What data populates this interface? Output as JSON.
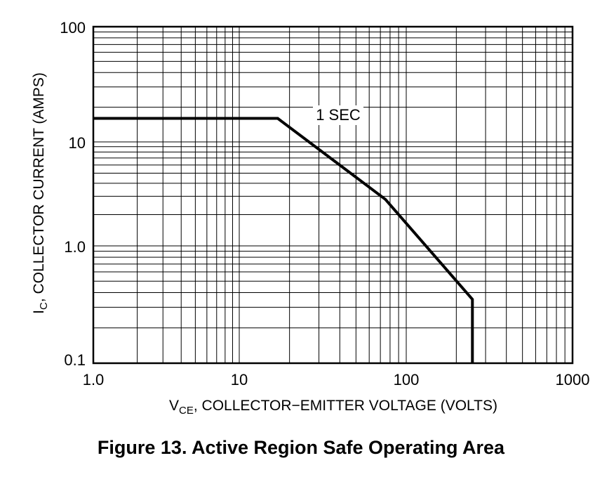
{
  "chart_data": {
    "type": "line",
    "title": "Figure 13. Active Region Safe Operating Area",
    "x_scale": "log",
    "y_scale": "log",
    "xlim": [
      1,
      1000
    ],
    "ylim": [
      0.1,
      100
    ],
    "grid": true,
    "x_ticks": [
      "1.0",
      "10",
      "100",
      "1000"
    ],
    "y_ticks": [
      "0.1",
      "1.0",
      "10",
      "100"
    ],
    "xlabel_main": "V",
    "xlabel_sub": "CE",
    "xlabel_rest": ", COLLECTOR−EMITTER VOLTAGE (VOLTS)",
    "ylabel_main": "I",
    "ylabel_sub": "C",
    "ylabel_rest": ", COLLECTOR CURRENT (AMPS)",
    "series": [
      {
        "annotation": "1 SEC",
        "x": [
          1,
          17,
          18,
          75,
          250,
          250
        ],
        "y": [
          16,
          16,
          15,
          2.8,
          0.35,
          0.1
        ]
      }
    ]
  }
}
